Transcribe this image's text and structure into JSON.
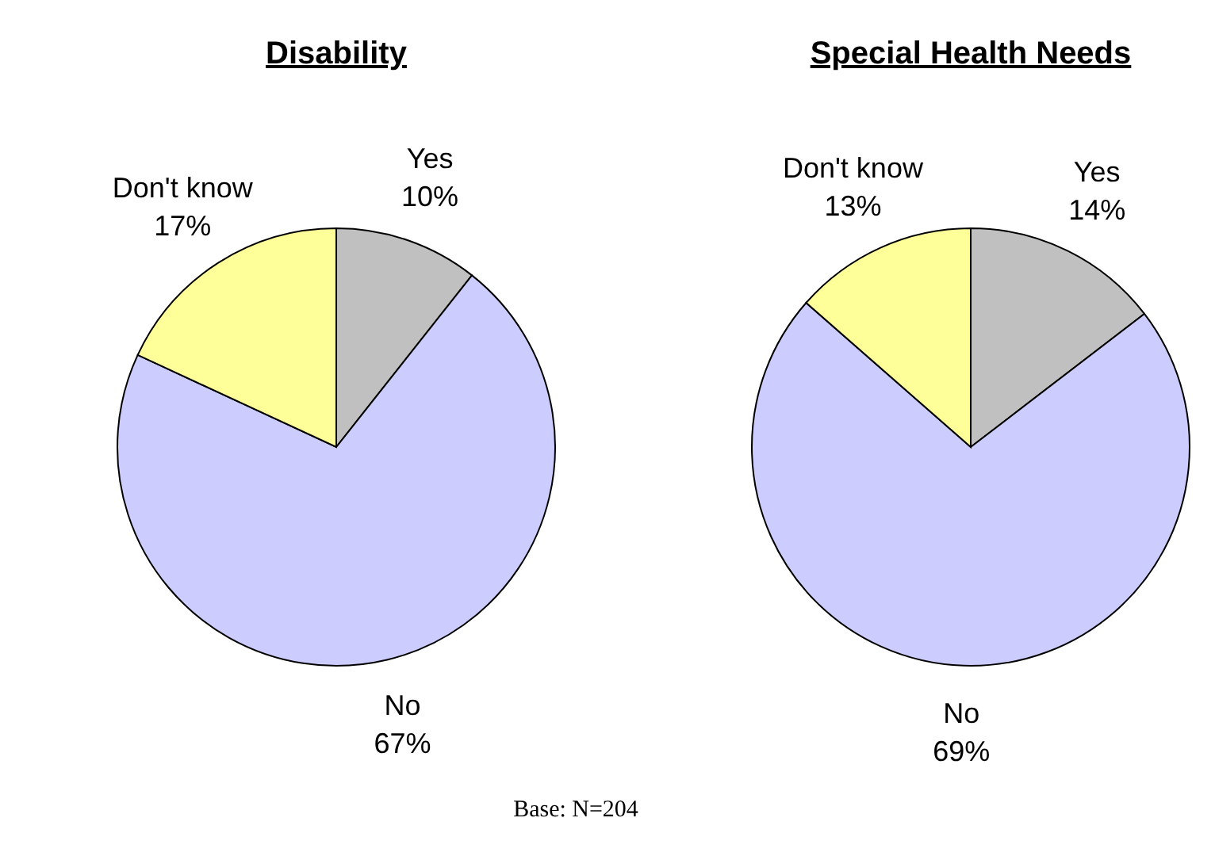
{
  "chart_data": [
    {
      "type": "pie",
      "title": "Disability",
      "categories": [
        "Yes",
        "No",
        "Don't know"
      ],
      "values": [
        10,
        67,
        17
      ],
      "value_labels": [
        "10%",
        "67%",
        "17%"
      ],
      "colors": [
        "#c0c0c0",
        "#ccccff",
        "#ffff99"
      ],
      "annotations": [
        "Base: N=204"
      ]
    },
    {
      "type": "pie",
      "title": "Special Health Needs",
      "categories": [
        "Yes",
        "No",
        "Don't know"
      ],
      "values": [
        14,
        69,
        13
      ],
      "value_labels": [
        "14%",
        "69%",
        "13%"
      ],
      "colors": [
        "#c0c0c0",
        "#ccccff",
        "#ffff99"
      ]
    }
  ]
}
